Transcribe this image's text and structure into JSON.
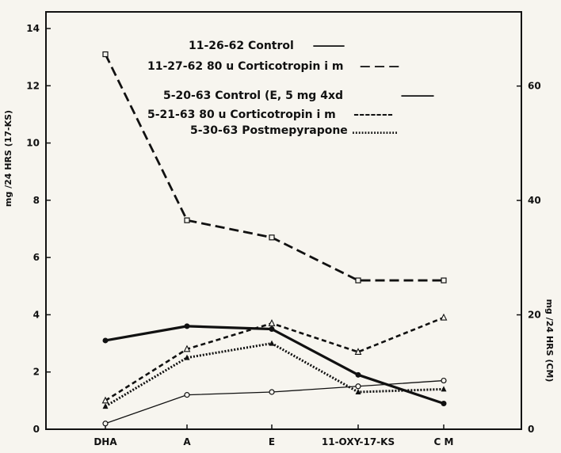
{
  "chart_data": {
    "type": "line",
    "categories": [
      "DHA",
      "A",
      "E",
      "11-OXY-17-KS",
      "C M"
    ],
    "ylabel": "mg /24 HRS (17-KS)",
    "y2label": "mg /24 HRS (CM)",
    "ylim": [
      0,
      14
    ],
    "y2lim": [
      0,
      70
    ],
    "yticks": [
      "0",
      "2",
      "4",
      "6",
      "8",
      "10",
      "12",
      "14"
    ],
    "y2ticks": [
      "0",
      "20",
      "40",
      "60"
    ],
    "grid": false,
    "legend_position": "top-center",
    "series": [
      {
        "name": "11-26-62 Control",
        "legend_line": "—",
        "values": [
          3.1,
          3.6,
          3.5,
          1.9,
          0.9
        ],
        "style": "thick-solid",
        "marker": "filled-circle"
      },
      {
        "name": "11-27-62 80 u Corticotropin i m",
        "legend_line": "— — —",
        "values": [
          13.1,
          7.3,
          6.7,
          5.2,
          5.2
        ],
        "style": "long-dash",
        "marker": "open-square"
      },
      {
        "name": "5-20-63 Control (E, 5 mg 4xd",
        "legend_line": "—",
        "values": [
          0.2,
          1.2,
          1.3,
          1.5,
          1.7
        ],
        "style": "thin-solid",
        "marker": "open-circle"
      },
      {
        "name": "5-21-63 80 u Corticotropin i m",
        "legend_line": "-------",
        "values": [
          1.0,
          2.8,
          3.7,
          2.7,
          3.9
        ],
        "style": "short-dash",
        "marker": "open-triangle"
      },
      {
        "name": "5-30-63 Postmepyrapone",
        "legend_line": "...............",
        "values": [
          0.8,
          2.5,
          3.0,
          1.3,
          1.4
        ],
        "style": "dotted",
        "marker": "filled-triangle"
      }
    ]
  }
}
